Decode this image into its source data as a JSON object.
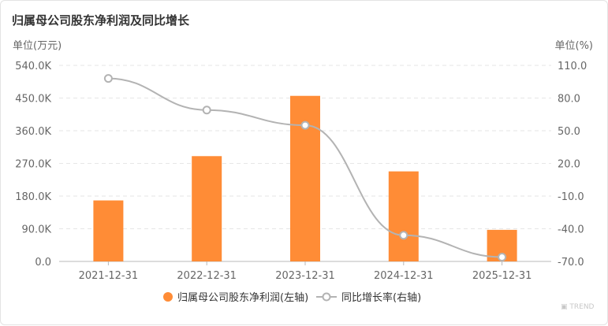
{
  "chart_data": {
    "type": "bar",
    "title": "归属母公司股东净利润及同比增长",
    "left_unit": "单位(万元)",
    "right_unit": "单位(%)",
    "categories": [
      "2021-12-31",
      "2022-12-31",
      "2023-12-31",
      "2024-12-31",
      "2025-12-31"
    ],
    "left_ticks": [
      "0.0",
      "90.0K",
      "180.0K",
      "270.0K",
      "360.0K",
      "450.0K",
      "540.0K"
    ],
    "right_ticks": [
      "-70.0",
      "-40.0",
      "-10.0",
      "20.0",
      "50.0",
      "80.0",
      "110.0"
    ],
    "ylim_left": [
      0,
      540000
    ],
    "ylim_right": [
      -70,
      110
    ],
    "grid": true,
    "legend_position": "bottom",
    "series": [
      {
        "name": "归属母公司股东净利润(左轴)",
        "type": "bar",
        "axis": "left",
        "color": "#ff8c36",
        "values": [
          168000,
          290000,
          456000,
          248000,
          87000
        ]
      },
      {
        "name": "同比增长率(右轴)",
        "type": "line",
        "axis": "right",
        "color": "#b3b3b3",
        "values": [
          98,
          69,
          55,
          -46,
          -66
        ]
      }
    ]
  },
  "watermark": {
    "icon": "t-logo-icon",
    "text": "TREND"
  }
}
